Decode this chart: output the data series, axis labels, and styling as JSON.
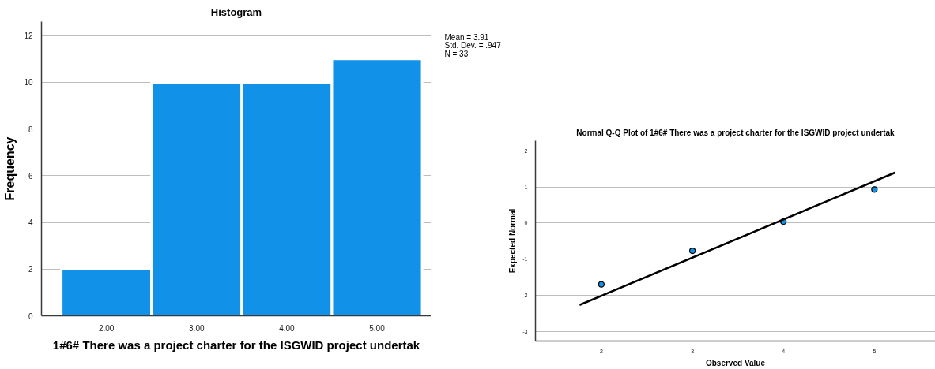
{
  "chart_data": [
    {
      "type": "histogram",
      "title": "Histogram",
      "xlabel": "1#6# There was a project charter for the ISGWID project undertak",
      "ylabel": "Frequency",
      "bins": [
        1.5,
        2.5,
        3.5,
        4.5,
        5.5
      ],
      "values": [
        2,
        10,
        10,
        11
      ],
      "color": "#1192e8",
      "xlim": [
        1.28,
        5.6
      ],
      "xticks": [
        {
          "value": 2,
          "label": "2.00"
        },
        {
          "value": 3,
          "label": "3.00"
        },
        {
          "value": 4,
          "label": "4.00"
        },
        {
          "value": 5,
          "label": "5.00"
        }
      ],
      "ylim": [
        0,
        12.6
      ],
      "yticks": [
        0,
        2,
        4,
        6,
        8,
        10,
        12
      ],
      "grid": "y",
      "annotations": [
        "Mean = 3.91",
        "Std. Dev. = .947",
        "N = 33"
      ]
    },
    {
      "type": "scatter",
      "title": "Normal Q-Q Plot of 1#6# There was a project charter for the ISGWID project undertak",
      "xlabel": "Observed Value",
      "ylabel": "Expected Normal",
      "series": [
        {
          "type": "scatter",
          "color": "#1192e8",
          "marker": "circle",
          "x": [
            2,
            3,
            4,
            5
          ],
          "values": [
            -1.7,
            -0.77,
            0.04,
            0.93
          ]
        },
        {
          "type": "line",
          "color": "#000000",
          "x": [
            1.76,
            5.23
          ],
          "values": [
            -2.27,
            1.4
          ]
        }
      ],
      "xlim": [
        1.275,
        5.67
      ],
      "xticks": [
        2,
        3,
        4,
        5
      ],
      "ylim": [
        -3.27,
        2.28
      ],
      "yticks": [
        -3,
        -2,
        -1,
        0,
        1,
        2
      ],
      "grid": "y"
    }
  ]
}
